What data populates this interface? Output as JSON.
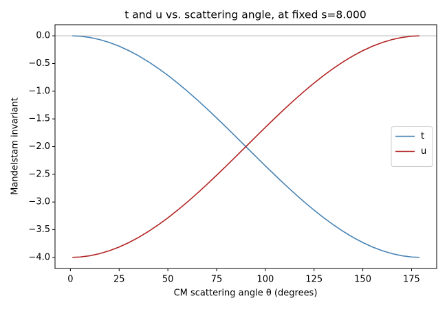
{
  "chart_data": {
    "type": "line",
    "title": "t and u vs. scattering angle, at fixed s=8.000",
    "x_label": "CM scattering angle θ (degrees)",
    "y_label": "Mandelstam invariant",
    "x": [
      1,
      5,
      10,
      15,
      20,
      25,
      30,
      35,
      40,
      45,
      50,
      55,
      60,
      65,
      70,
      75,
      80,
      85,
      90,
      95,
      100,
      105,
      110,
      115,
      120,
      125,
      130,
      135,
      140,
      145,
      150,
      155,
      160,
      165,
      170,
      175,
      179
    ],
    "series": [
      {
        "name": "t",
        "color": "#4682b4",
        "values": [
          -0.0003,
          -0.0076,
          -0.0304,
          -0.0681,
          -0.1206,
          -0.1874,
          -0.2679,
          -0.3617,
          -0.4679,
          -0.5858,
          -0.7144,
          -0.8528,
          -1.0,
          -1.1548,
          -1.316,
          -1.4824,
          -1.6527,
          -1.8257,
          -2.0,
          -2.1743,
          -2.3473,
          -2.5176,
          -2.684,
          -2.8452,
          -3.0,
          -3.1472,
          -3.2856,
          -3.4142,
          -3.5321,
          -3.6383,
          -3.7321,
          -3.8126,
          -3.8794,
          -3.9319,
          -3.9696,
          -3.9924,
          -3.9997
        ]
      },
      {
        "name": "u",
        "color": "#b22222",
        "values": [
          -3.9997,
          -3.9924,
          -3.9696,
          -3.9319,
          -3.8794,
          -3.8126,
          -3.7321,
          -3.6383,
          -3.5321,
          -3.4142,
          -3.2856,
          -3.1472,
          -3.0,
          -2.8452,
          -2.684,
          -2.5176,
          -2.3473,
          -2.1743,
          -2.0,
          -1.8257,
          -1.6527,
          -1.4824,
          -1.316,
          -1.1548,
          -1.0,
          -0.8528,
          -0.7144,
          -0.5858,
          -0.4679,
          -0.3617,
          -0.2679,
          -0.1874,
          -0.1206,
          -0.0681,
          -0.0304,
          -0.0076,
          -0.0003
        ]
      }
    ],
    "xlim": [
      -7.9,
      187.9
    ],
    "ylim": [
      -4.2,
      0.2
    ],
    "xticks": [
      0,
      25,
      50,
      75,
      100,
      125,
      150,
      175
    ],
    "yticks": [
      {
        "value": 0,
        "label": "0.0"
      },
      {
        "value": -0.5,
        "label": "−0.5"
      },
      {
        "value": -1,
        "label": "−1.0"
      },
      {
        "value": -1.5,
        "label": "−1.5"
      },
      {
        "value": -2,
        "label": "−2.0"
      },
      {
        "value": -2.5,
        "label": "−2.5"
      },
      {
        "value": -3,
        "label": "−3.0"
      },
      {
        "value": -3.5,
        "label": "−3.5"
      },
      {
        "value": -4,
        "label": "−4.0"
      }
    ],
    "hlines": [
      0
    ],
    "hline_color": "#b0b0b0",
    "grid": false,
    "legend": "right"
  }
}
